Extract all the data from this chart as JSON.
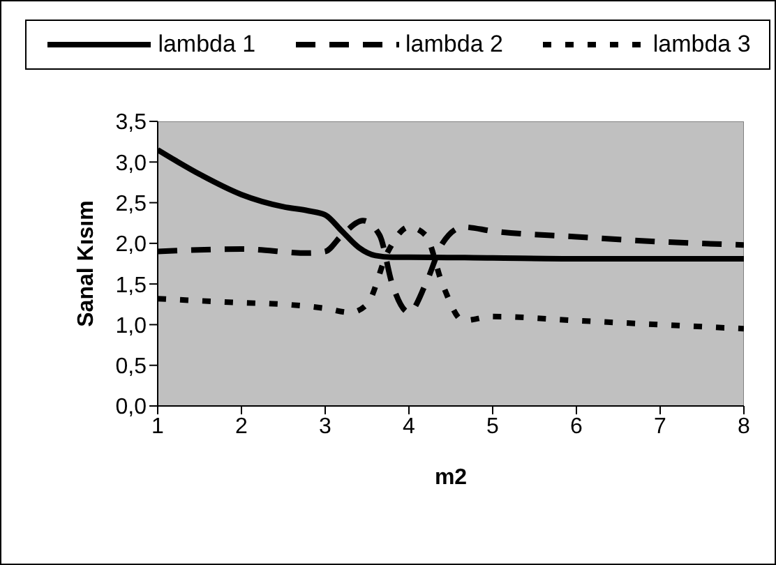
{
  "chart_data": {
    "type": "line",
    "xlabel": "m2",
    "ylabel": "Sanal Kısım",
    "xlim": [
      1,
      8
    ],
    "xticks": [
      1,
      2,
      3,
      4,
      5,
      6,
      7,
      8
    ],
    "ylim": [
      0,
      3.5
    ],
    "yticks": [
      {
        "value": 0,
        "label": "0,0"
      },
      {
        "value": 0.5,
        "label": "0,5"
      },
      {
        "value": 1,
        "label": "1,0"
      },
      {
        "value": 1.5,
        "label": "1,5"
      },
      {
        "value": 2,
        "label": "2,0"
      },
      {
        "value": 2.5,
        "label": "2,5"
      },
      {
        "value": 3,
        "label": "3,0"
      },
      {
        "value": 3.5,
        "label": "3,5"
      }
    ],
    "grid": false,
    "legend": "top",
    "marker": "none",
    "series": [
      {
        "name": "lambda 1",
        "color": "#000000",
        "line_style": "solid",
        "x": [
          1,
          1.5,
          2,
          2.5,
          2.8,
          3,
          3.2,
          3.4,
          3.6,
          3.8,
          4,
          5,
          6,
          7,
          8
        ],
        "values": [
          3.15,
          2.85,
          2.6,
          2.45,
          2.4,
          2.35,
          2.15,
          1.95,
          1.85,
          1.83,
          1.83,
          1.82,
          1.81,
          1.81,
          1.81
        ]
      },
      {
        "name": "lambda 2",
        "color": "#000000",
        "line_style": "dashed",
        "x": [
          1,
          2,
          2.8,
          3,
          3.2,
          3.45,
          3.65,
          3.8,
          4,
          4.2,
          4.4,
          4.65,
          5,
          6,
          7,
          8
        ],
        "values": [
          1.9,
          1.93,
          1.88,
          1.9,
          2.1,
          2.28,
          2.1,
          1.5,
          1.15,
          1.5,
          2.0,
          2.2,
          2.15,
          2.08,
          2.02,
          1.98
        ]
      },
      {
        "name": "lambda 3",
        "color": "#000000",
        "line_style": "dotted",
        "x": [
          1,
          2,
          2.5,
          3,
          3.3,
          3.5,
          3.75,
          4,
          4.2,
          4.4,
          4.65,
          5,
          6,
          7,
          8
        ],
        "values": [
          1.32,
          1.27,
          1.25,
          1.2,
          1.15,
          1.25,
          1.9,
          2.2,
          2.1,
          1.5,
          1.05,
          1.1,
          1.05,
          1.0,
          0.95
        ]
      }
    ]
  }
}
